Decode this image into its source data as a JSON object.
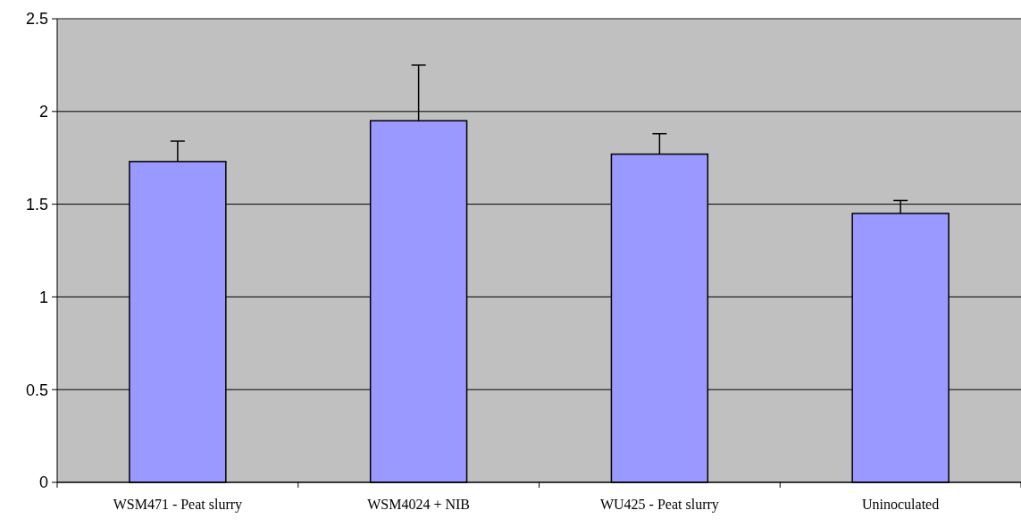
{
  "chart_data": {
    "type": "bar",
    "categories": [
      "WSM471 - Peat slurry",
      "WSM4024 + NIB",
      "WU425 - Peat slurry",
      "Uninoculated"
    ],
    "values": [
      1.73,
      1.95,
      1.77,
      1.45
    ],
    "errors": [
      0.11,
      0.3,
      0.11,
      0.07
    ],
    "color": "#9999ff",
    "ylim": [
      0,
      2.5
    ],
    "yticks": [
      0,
      0.5,
      1,
      1.5,
      2,
      2.5
    ],
    "grid": "y"
  }
}
